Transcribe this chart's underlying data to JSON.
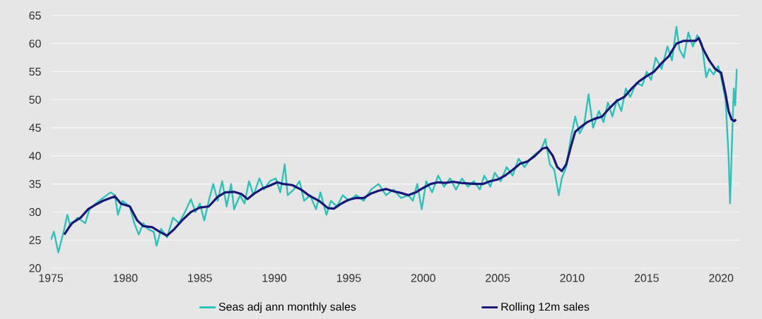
{
  "chart_data": {
    "type": "line",
    "x": [
      1975.0,
      1975.2,
      1975.5,
      1975.9,
      1976.1,
      1976.3,
      1976.8,
      1977.3,
      1977.6,
      1978.0,
      1978.5,
      1979.0,
      1979.3,
      1979.5,
      1979.8,
      1980.3,
      1980.6,
      1980.9,
      1981.2,
      1981.5,
      1981.9,
      1982.1,
      1982.4,
      1982.8,
      1983.2,
      1983.6,
      1984.0,
      1984.4,
      1984.7,
      1985.0,
      1985.3,
      1985.6,
      1985.9,
      1986.2,
      1986.5,
      1986.8,
      1987.1,
      1987.3,
      1987.7,
      1988.0,
      1988.3,
      1988.6,
      1989.0,
      1989.3,
      1989.7,
      1990.1,
      1990.4,
      1990.7,
      1990.9,
      1991.3,
      1991.7,
      1992.0,
      1992.4,
      1992.8,
      1993.1,
      1993.5,
      1993.8,
      1994.2,
      1994.6,
      1995.0,
      1995.5,
      1996.0,
      1996.5,
      1997.0,
      1997.5,
      1998.0,
      1998.5,
      1999.0,
      1999.3,
      1999.6,
      1999.9,
      2000.2,
      2000.6,
      2001.0,
      2001.4,
      2001.8,
      2002.2,
      2002.6,
      2003.0,
      2003.4,
      2003.8,
      2004.1,
      2004.5,
      2004.8,
      2005.2,
      2005.6,
      2006.0,
      2006.4,
      2006.8,
      2007.2,
      2007.6,
      2007.9,
      2008.2,
      2008.5,
      2008.8,
      2009.1,
      2009.3,
      2009.6,
      2009.9,
      2010.2,
      2010.5,
      2010.8,
      2011.1,
      2011.4,
      2011.8,
      2012.1,
      2012.4,
      2012.7,
      2013.0,
      2013.3,
      2013.6,
      2013.9,
      2014.3,
      2014.7,
      2015.0,
      2015.3,
      2015.6,
      2016.0,
      2016.4,
      2016.7,
      2017.0,
      2017.2,
      2017.5,
      2017.8,
      2018.1,
      2018.4,
      2018.7,
      2019.0,
      2019.2,
      2019.5,
      2019.8,
      2020.0,
      2020.3,
      2020.5,
      2020.6,
      2020.75,
      2020.85,
      2020.95,
      2021.05
    ],
    "series": [
      {
        "name": "Seas adj ann monthly sales",
        "color": "#2cc3b8",
        "values": [
          25,
          26.5,
          22.8,
          27,
          29.5,
          27.5,
          29,
          28,
          30.5,
          31.5,
          32.5,
          33.5,
          33,
          29.5,
          32,
          31,
          28,
          26,
          28,
          27,
          26.5,
          24,
          27,
          25.5,
          29,
          28,
          30,
          32.3,
          30,
          31.5,
          28.5,
          32,
          35,
          32,
          35.5,
          31,
          35,
          30.5,
          33,
          31.5,
          35.5,
          33,
          36,
          34,
          35.5,
          36,
          33.5,
          38.5,
          33,
          34,
          35.5,
          32,
          33,
          30.5,
          33.5,
          29.5,
          32,
          31,
          33,
          32,
          33,
          32,
          34,
          35,
          33,
          34,
          32.5,
          33,
          32,
          35,
          30.5,
          35.5,
          33.5,
          36.5,
          34.5,
          36,
          34,
          36,
          34.5,
          35.5,
          34,
          36.5,
          34.5,
          37,
          35.5,
          38,
          36.5,
          39.5,
          38,
          39.5,
          40.5,
          41,
          43,
          38.5,
          37.5,
          33,
          36,
          38,
          43,
          47,
          44,
          45.5,
          51,
          45,
          48,
          46,
          49.5,
          47,
          50,
          48,
          52,
          50.5,
          53,
          52.5,
          55,
          53.5,
          57.5,
          55.5,
          59.5,
          57,
          63,
          59,
          57.5,
          62,
          59.5,
          61.5,
          60,
          54,
          55.5,
          54.5,
          56,
          54,
          50,
          40,
          31.5,
          44,
          52,
          49,
          55.5
        ]
      },
      {
        "name": "Rolling 12m sales",
        "color": "#17177a",
        "x": [
          1975.9,
          1976.4,
          1977.0,
          1977.5,
          1978.0,
          1978.5,
          1979.0,
          1979.3,
          1979.7,
          1980.3,
          1980.8,
          1981.2,
          1981.8,
          1982.3,
          1982.8,
          1983.3,
          1983.8,
          1984.4,
          1985.0,
          1985.6,
          1986.2,
          1986.7,
          1987.3,
          1987.8,
          1988.2,
          1988.6,
          1989.2,
          1989.7,
          1990.2,
          1990.6,
          1991.2,
          1991.8,
          1992.3,
          1993.0,
          1993.6,
          1994.0,
          1994.5,
          1995.0,
          1995.5,
          1996.0,
          1996.5,
          1997.0,
          1997.5,
          1998.0,
          1998.5,
          1999.0,
          1999.5,
          2000.0,
          2000.5,
          2001.0,
          2001.5,
          2002.0,
          2002.5,
          2003.0,
          2003.5,
          2004.0,
          2004.5,
          2005.0,
          2005.5,
          2006.0,
          2006.5,
          2007.0,
          2007.5,
          2008.0,
          2008.3,
          2008.7,
          2009.0,
          2009.3,
          2009.6,
          2009.9,
          2010.2,
          2010.6,
          2011.0,
          2011.5,
          2012.0,
          2012.5,
          2013.0,
          2013.5,
          2014.0,
          2014.5,
          2015.0,
          2015.5,
          2016.0,
          2016.5,
          2017.0,
          2017.5,
          2018.0,
          2018.3,
          2018.5,
          2018.8,
          2019.2,
          2019.6,
          2020.0,
          2020.3,
          2020.5,
          2020.7,
          2020.9,
          2021.0
        ],
        "values": [
          26,
          28,
          29,
          30.5,
          31.3,
          32,
          32.5,
          32.8,
          31.5,
          31,
          28.5,
          27.5,
          27.3,
          26.5,
          25.8,
          27,
          28.5,
          30,
          30.8,
          31,
          32.7,
          33.5,
          33.6,
          33.2,
          32.3,
          33.2,
          34.2,
          34.7,
          35.3,
          35,
          34.8,
          34,
          33,
          32,
          30.7,
          30.6,
          31.5,
          32.2,
          32.5,
          32.5,
          33.3,
          33.8,
          34.1,
          33.7,
          33.4,
          33,
          33.5,
          34.3,
          35,
          35.3,
          35.2,
          35.4,
          35.2,
          35.1,
          35,
          35,
          35.5,
          35.8,
          36.5,
          37.5,
          38.6,
          39,
          40,
          41.3,
          41.5,
          40,
          38,
          37.3,
          38.5,
          41.5,
          44.3,
          45.2,
          46,
          46.6,
          47,
          48.5,
          49.8,
          50.5,
          52,
          53.3,
          54.2,
          55,
          56.5,
          57.8,
          60,
          60.5,
          60.5,
          60.5,
          61,
          59,
          57,
          55.5,
          54.8,
          51,
          48,
          46.5,
          46.2,
          46.5
        ]
      }
    ],
    "xlim": [
      1975,
      2021.2
    ],
    "ylim": [
      20,
      65
    ],
    "xticks": [
      1975,
      1980,
      1985,
      1990,
      1995,
      2000,
      2005,
      2010,
      2015,
      2020
    ],
    "yticks": [
      20,
      25,
      30,
      35,
      40,
      45,
      50,
      55,
      60,
      65
    ],
    "grid": "y",
    "legend": "bottom",
    "marker": "none",
    "line_style": "solid"
  }
}
